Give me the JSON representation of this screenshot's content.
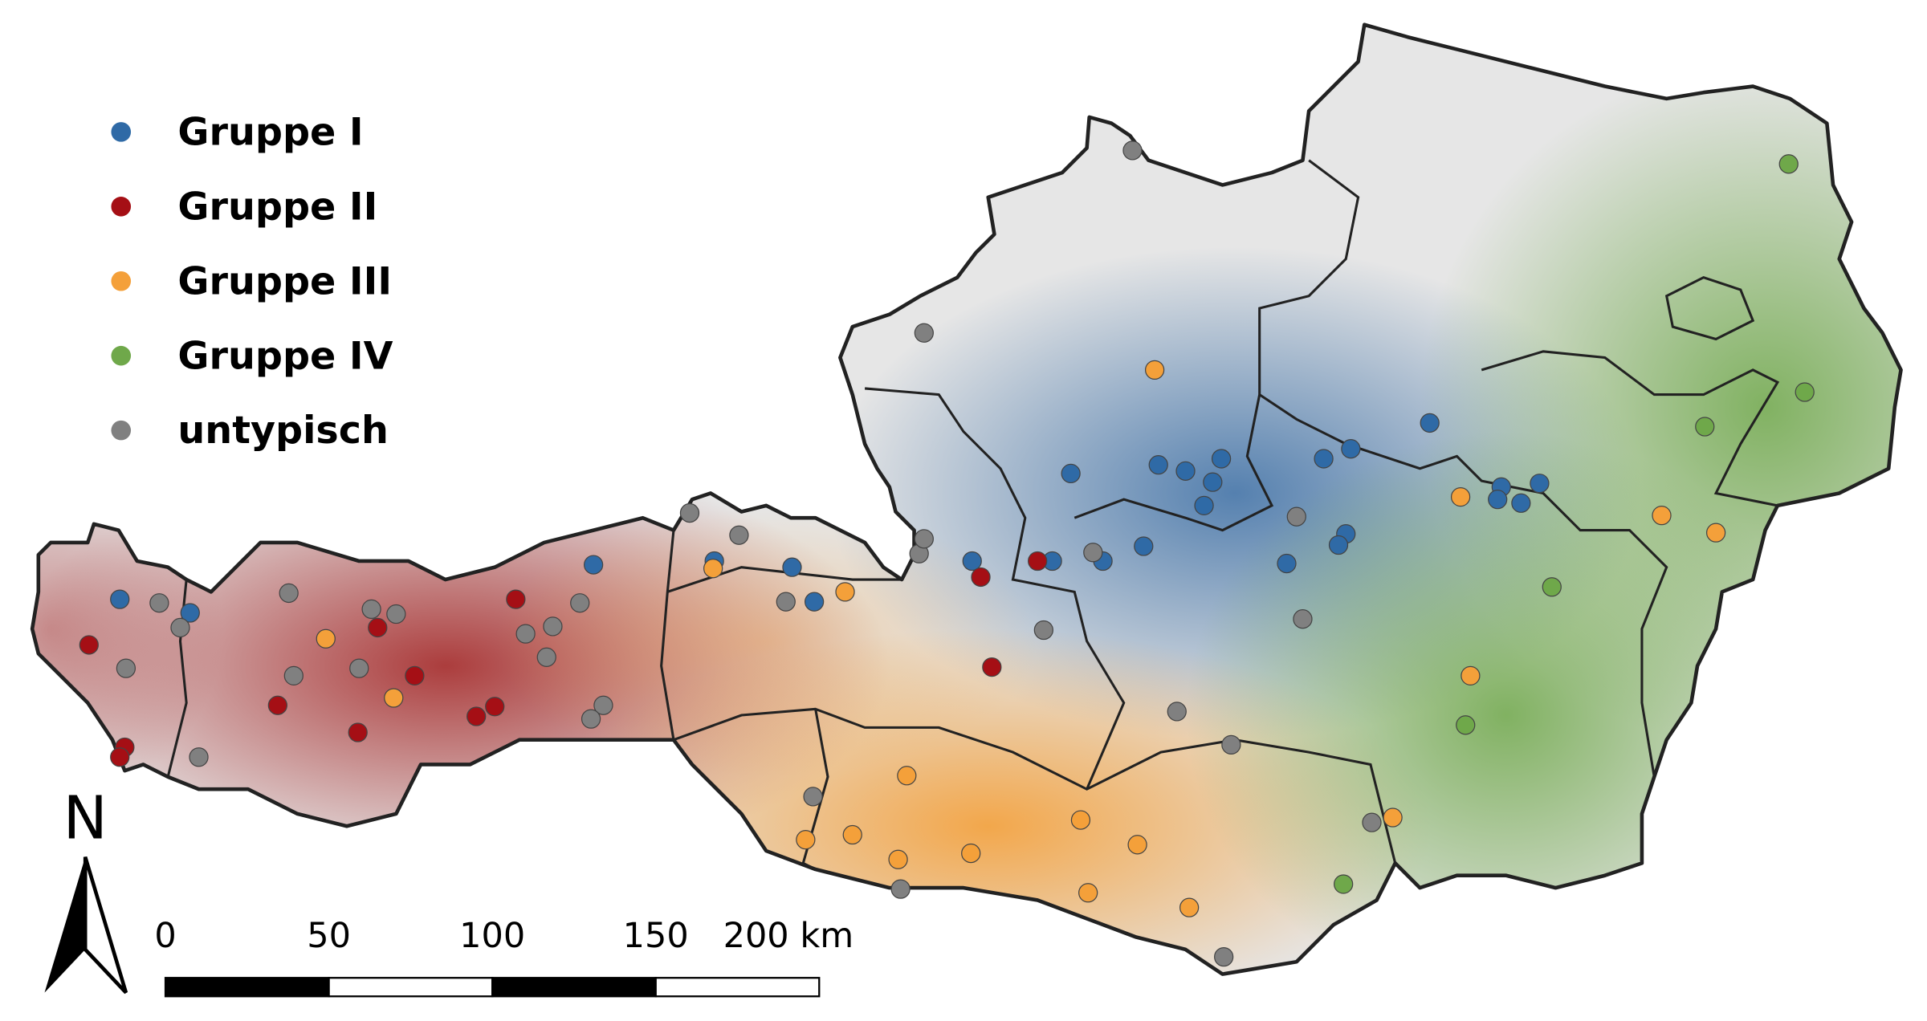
{
  "legend": {
    "entries": [
      {
        "label": "Gruppe I",
        "color": "#2f6aa6"
      },
      {
        "label": "Gruppe II",
        "color": "#a50f15"
      },
      {
        "label": "Gruppe III",
        "color": "#f4a03a"
      },
      {
        "label": "Gruppe IV",
        "color": "#6fa84a"
      },
      {
        "label": "untypisch",
        "color": "#808080"
      }
    ]
  },
  "north_arrow": {
    "label": "N"
  },
  "scale_bar": {
    "ticks": [
      0,
      50,
      100,
      150,
      {
        "value": 200,
        "label": "200 km"
      }
    ]
  }
}
